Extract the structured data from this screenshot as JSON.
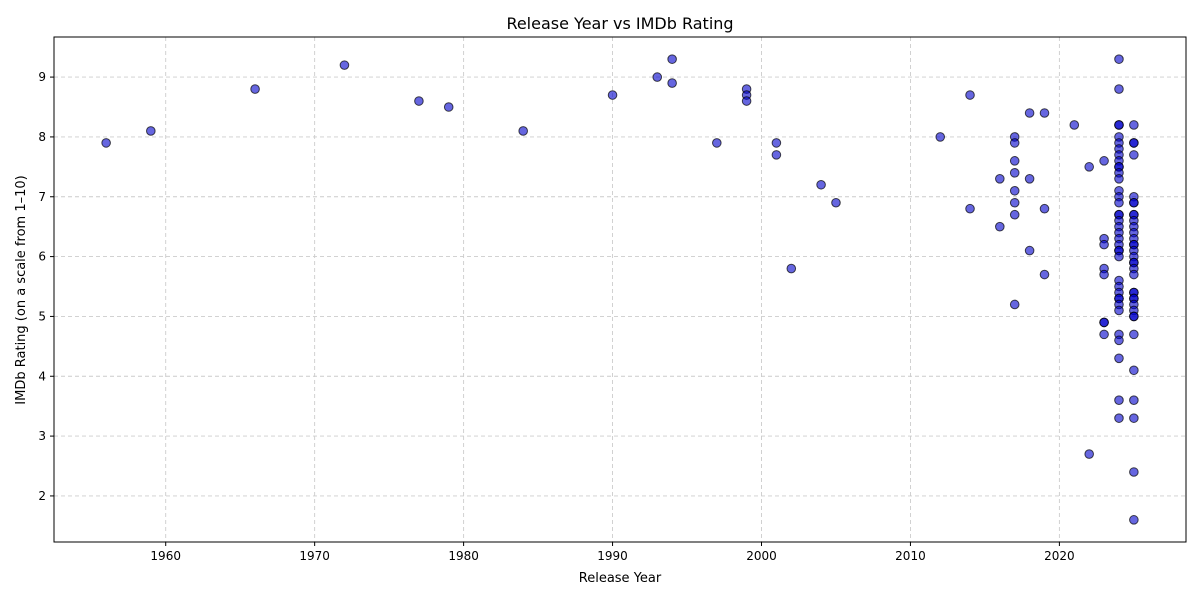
{
  "chart_data": {
    "type": "scatter",
    "title": "Release Year vs IMDb Rating",
    "xlabel": "Release Year",
    "ylabel": "IMDb Rating (on a scale from 1–10)",
    "xlim": [
      1952.5,
      2028.5
    ],
    "ylim": [
      1.23,
      9.67
    ],
    "xticks": [
      1960,
      1970,
      1980,
      1990,
      2000,
      2010,
      2020
    ],
    "yticks": [
      2,
      3,
      4,
      5,
      6,
      7,
      8,
      9
    ],
    "grid": true,
    "marker_color": "#0000cc",
    "marker_edge": "#000000",
    "points": [
      [
        1956,
        7.9
      ],
      [
        1959,
        8.1
      ],
      [
        1966,
        8.8
      ],
      [
        1972,
        9.2
      ],
      [
        1977,
        8.6
      ],
      [
        1979,
        8.5
      ],
      [
        1984,
        8.1
      ],
      [
        1990,
        8.7
      ],
      [
        1993,
        9.0
      ],
      [
        1994,
        9.3
      ],
      [
        1994,
        8.9
      ],
      [
        1997,
        7.9
      ],
      [
        1999,
        8.8
      ],
      [
        1999,
        8.7
      ],
      [
        1999,
        8.6
      ],
      [
        2001,
        7.9
      ],
      [
        2001,
        7.7
      ],
      [
        2002,
        5.8
      ],
      [
        2004,
        7.2
      ],
      [
        2005,
        6.9
      ],
      [
        2012,
        8.0
      ],
      [
        2014,
        8.7
      ],
      [
        2014,
        6.8
      ],
      [
        2016,
        7.3
      ],
      [
        2016,
        6.5
      ],
      [
        2017,
        8.0
      ],
      [
        2017,
        7.9
      ],
      [
        2017,
        7.6
      ],
      [
        2017,
        7.4
      ],
      [
        2017,
        7.1
      ],
      [
        2017,
        6.9
      ],
      [
        2017,
        6.7
      ],
      [
        2017,
        5.2
      ],
      [
        2018,
        8.4
      ],
      [
        2018,
        7.3
      ],
      [
        2018,
        6.1
      ],
      [
        2019,
        8.4
      ],
      [
        2019,
        6.8
      ],
      [
        2019,
        5.7
      ],
      [
        2021,
        8.2
      ],
      [
        2022,
        7.5
      ],
      [
        2022,
        2.7
      ],
      [
        2023,
        7.6
      ],
      [
        2023,
        6.3
      ],
      [
        2023,
        6.2
      ],
      [
        2023,
        5.8
      ],
      [
        2023,
        5.7
      ],
      [
        2023,
        4.9
      ],
      [
        2023,
        4.9
      ],
      [
        2023,
        4.7
      ],
      [
        2024,
        9.3
      ],
      [
        2024,
        8.8
      ],
      [
        2024,
        8.2
      ],
      [
        2024,
        8.2
      ],
      [
        2024,
        8.0
      ],
      [
        2024,
        7.9
      ],
      [
        2024,
        7.8
      ],
      [
        2024,
        7.7
      ],
      [
        2024,
        7.6
      ],
      [
        2024,
        7.5
      ],
      [
        2024,
        7.5
      ],
      [
        2024,
        7.4
      ],
      [
        2024,
        7.3
      ],
      [
        2024,
        7.1
      ],
      [
        2024,
        7.0
      ],
      [
        2024,
        6.9
      ],
      [
        2024,
        6.7
      ],
      [
        2024,
        6.7
      ],
      [
        2024,
        6.6
      ],
      [
        2024,
        6.5
      ],
      [
        2024,
        6.4
      ],
      [
        2024,
        6.3
      ],
      [
        2024,
        6.2
      ],
      [
        2024,
        6.1
      ],
      [
        2024,
        6.1
      ],
      [
        2024,
        6.0
      ],
      [
        2024,
        5.6
      ],
      [
        2024,
        5.5
      ],
      [
        2024,
        5.4
      ],
      [
        2024,
        5.3
      ],
      [
        2024,
        5.3
      ],
      [
        2024,
        5.2
      ],
      [
        2024,
        5.1
      ],
      [
        2024,
        4.7
      ],
      [
        2024,
        4.6
      ],
      [
        2024,
        4.3
      ],
      [
        2024,
        3.6
      ],
      [
        2024,
        3.3
      ],
      [
        2025,
        8.2
      ],
      [
        2025,
        7.9
      ],
      [
        2025,
        7.9
      ],
      [
        2025,
        7.7
      ],
      [
        2025,
        7.0
      ],
      [
        2025,
        6.9
      ],
      [
        2025,
        6.9
      ],
      [
        2025,
        6.7
      ],
      [
        2025,
        6.7
      ],
      [
        2025,
        6.6
      ],
      [
        2025,
        6.5
      ],
      [
        2025,
        6.4
      ],
      [
        2025,
        6.3
      ],
      [
        2025,
        6.2
      ],
      [
        2025,
        6.2
      ],
      [
        2025,
        6.1
      ],
      [
        2025,
        6.0
      ],
      [
        2025,
        5.9
      ],
      [
        2025,
        5.9
      ],
      [
        2025,
        5.8
      ],
      [
        2025,
        5.7
      ],
      [
        2025,
        5.4
      ],
      [
        2025,
        5.4
      ],
      [
        2025,
        5.3
      ],
      [
        2025,
        5.3
      ],
      [
        2025,
        5.2
      ],
      [
        2025,
        5.1
      ],
      [
        2025,
        5.0
      ],
      [
        2025,
        5.0
      ],
      [
        2025,
        4.7
      ],
      [
        2025,
        4.1
      ],
      [
        2025,
        3.6
      ],
      [
        2025,
        3.3
      ],
      [
        2025,
        2.4
      ],
      [
        2025,
        1.6
      ]
    ]
  }
}
